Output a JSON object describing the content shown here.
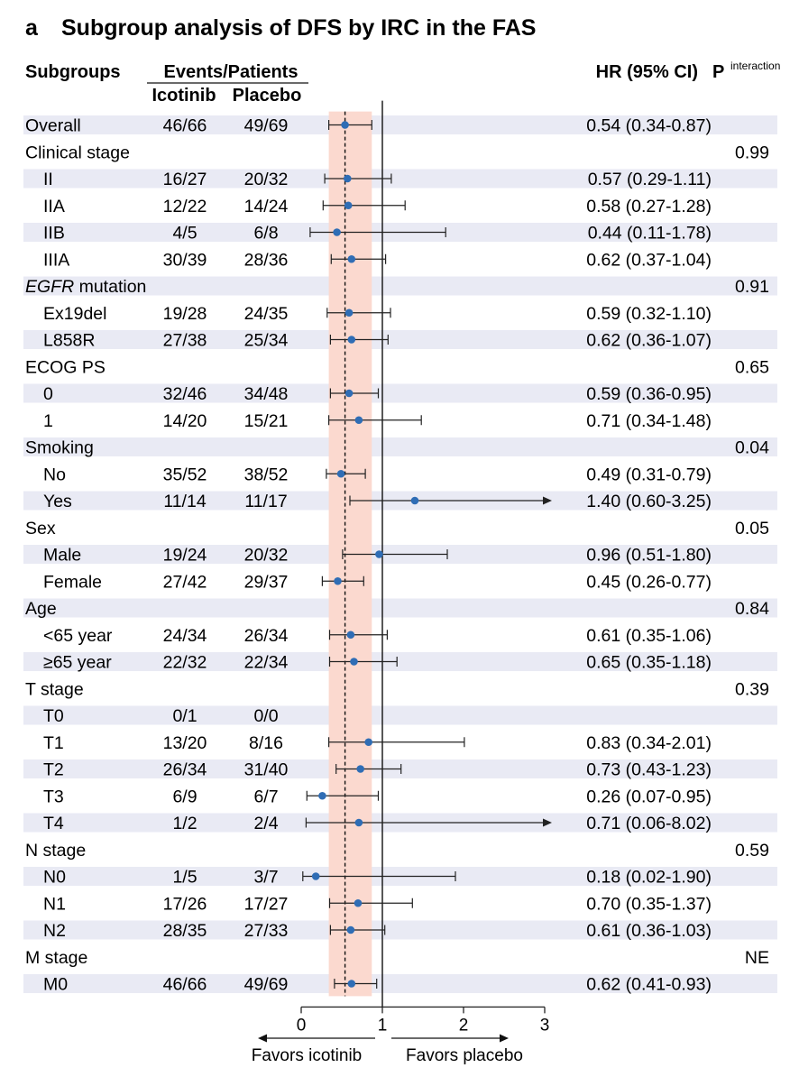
{
  "figure": {
    "panel_label": "a",
    "title": "Subgroup analysis of DFS by IRC in the FAS"
  },
  "headers": {
    "subgroups": "Subgroups",
    "events_patients": "Events/Patients",
    "icotinib": "Icotinib",
    "placebo": "Placebo",
    "hr": "HR (95% CI)",
    "p": "P",
    "p_sup": "interaction"
  },
  "favors": {
    "left": "Favors icotinib",
    "right": "Favors placebo"
  },
  "chart_data": {
    "type": "forest",
    "title": "Subgroup analysis of DFS by IRC in the FAS",
    "xlim": [
      0,
      3
    ],
    "xticks": [
      0,
      1,
      2,
      3
    ],
    "reference_line": 1,
    "overall_hr_line": 0.54,
    "overall_ci_band": [
      0.34,
      0.87
    ],
    "rows": [
      {
        "label": "Overall",
        "indent": false,
        "italic": "",
        "ico": "46/66",
        "pla": "49/69",
        "hr": 0.54,
        "lo": 0.34,
        "hi": 0.87,
        "arrow": false,
        "hrtext": "0.54 (0.34-0.87)",
        "p": "",
        "shaded": true
      },
      {
        "label": "Clinical stage",
        "indent": false,
        "italic": "",
        "ico": "",
        "pla": "",
        "hr": null,
        "lo": null,
        "hi": null,
        "arrow": false,
        "hrtext": "",
        "p": "0.99",
        "shaded": false
      },
      {
        "label": "II",
        "indent": true,
        "italic": "",
        "ico": "16/27",
        "pla": "20/32",
        "hr": 0.57,
        "lo": 0.29,
        "hi": 1.11,
        "arrow": false,
        "hrtext": "0.57 (0.29-1.11)",
        "p": "",
        "shaded": true
      },
      {
        "label": "IIA",
        "indent": true,
        "italic": "",
        "ico": "12/22",
        "pla": "14/24",
        "hr": 0.58,
        "lo": 0.27,
        "hi": 1.28,
        "arrow": false,
        "hrtext": "0.58 (0.27-1.28)",
        "p": "",
        "shaded": false
      },
      {
        "label": "IIB",
        "indent": true,
        "italic": "",
        "ico": "4/5",
        "pla": "6/8",
        "hr": 0.44,
        "lo": 0.11,
        "hi": 1.78,
        "arrow": false,
        "hrtext": "0.44 (0.11-1.78)",
        "p": "",
        "shaded": true
      },
      {
        "label": "IIIA",
        "indent": true,
        "italic": "",
        "ico": "30/39",
        "pla": "28/36",
        "hr": 0.62,
        "lo": 0.37,
        "hi": 1.04,
        "arrow": false,
        "hrtext": "0.62 (0.37-1.04)",
        "p": "",
        "shaded": false
      },
      {
        "label": " mutation",
        "indent": false,
        "italic": "EGFR",
        "ico": "",
        "pla": "",
        "hr": null,
        "lo": null,
        "hi": null,
        "arrow": false,
        "hrtext": "",
        "p": "0.91",
        "shaded": true
      },
      {
        "label": "Ex19del",
        "indent": true,
        "italic": "",
        "ico": "19/28",
        "pla": "24/35",
        "hr": 0.59,
        "lo": 0.32,
        "hi": 1.1,
        "arrow": false,
        "hrtext": "0.59 (0.32-1.10)",
        "p": "",
        "shaded": false
      },
      {
        "label": "L858R",
        "indent": true,
        "italic": "",
        "ico": "27/38",
        "pla": "25/34",
        "hr": 0.62,
        "lo": 0.36,
        "hi": 1.07,
        "arrow": false,
        "hrtext": "0.62 (0.36-1.07)",
        "p": "",
        "shaded": true
      },
      {
        "label": "ECOG PS",
        "indent": false,
        "italic": "",
        "ico": "",
        "pla": "",
        "hr": null,
        "lo": null,
        "hi": null,
        "arrow": false,
        "hrtext": "",
        "p": "0.65",
        "shaded": false
      },
      {
        "label": "0",
        "indent": true,
        "italic": "",
        "ico": "32/46",
        "pla": "34/48",
        "hr": 0.59,
        "lo": 0.36,
        "hi": 0.95,
        "arrow": false,
        "hrtext": "0.59 (0.36-0.95)",
        "p": "",
        "shaded": true
      },
      {
        "label": "1",
        "indent": true,
        "italic": "",
        "ico": "14/20",
        "pla": "15/21",
        "hr": 0.71,
        "lo": 0.34,
        "hi": 1.48,
        "arrow": false,
        "hrtext": "0.71 (0.34-1.48)",
        "p": "",
        "shaded": false
      },
      {
        "label": "Smoking",
        "indent": false,
        "italic": "",
        "ico": "",
        "pla": "",
        "hr": null,
        "lo": null,
        "hi": null,
        "arrow": false,
        "hrtext": "",
        "p": "0.04",
        "shaded": true
      },
      {
        "label": "No",
        "indent": true,
        "italic": "",
        "ico": "35/52",
        "pla": "38/52",
        "hr": 0.49,
        "lo": 0.31,
        "hi": 0.79,
        "arrow": false,
        "hrtext": "0.49 (0.31-0.79)",
        "p": "",
        "shaded": false
      },
      {
        "label": "Yes",
        "indent": true,
        "italic": "",
        "ico": "11/14",
        "pla": "11/17",
        "hr": 1.4,
        "lo": 0.6,
        "hi": 3.25,
        "arrow": true,
        "hrtext": "1.40 (0.60-3.25)",
        "p": "",
        "shaded": true
      },
      {
        "label": "Sex",
        "indent": false,
        "italic": "",
        "ico": "",
        "pla": "",
        "hr": null,
        "lo": null,
        "hi": null,
        "arrow": false,
        "hrtext": "",
        "p": "0.05",
        "shaded": false
      },
      {
        "label": "Male",
        "indent": true,
        "italic": "",
        "ico": "19/24",
        "pla": "20/32",
        "hr": 0.96,
        "lo": 0.51,
        "hi": 1.8,
        "arrow": false,
        "hrtext": "0.96 (0.51-1.80)",
        "p": "",
        "shaded": true
      },
      {
        "label": "Female",
        "indent": true,
        "italic": "",
        "ico": "27/42",
        "pla": "29/37",
        "hr": 0.45,
        "lo": 0.26,
        "hi": 0.77,
        "arrow": false,
        "hrtext": "0.45 (0.26-0.77)",
        "p": "",
        "shaded": false
      },
      {
        "label": "Age",
        "indent": false,
        "italic": "",
        "ico": "",
        "pla": "",
        "hr": null,
        "lo": null,
        "hi": null,
        "arrow": false,
        "hrtext": "",
        "p": "0.84",
        "shaded": true
      },
      {
        "label": "<65 year",
        "indent": true,
        "italic": "",
        "ico": "24/34",
        "pla": "26/34",
        "hr": 0.61,
        "lo": 0.35,
        "hi": 1.06,
        "arrow": false,
        "hrtext": "0.61 (0.35-1.06)",
        "p": "",
        "shaded": false
      },
      {
        "label": "≥65 year",
        "indent": true,
        "italic": "",
        "ico": "22/32",
        "pla": "22/34",
        "hr": 0.65,
        "lo": 0.35,
        "hi": 1.18,
        "arrow": false,
        "hrtext": "0.65 (0.35-1.18)",
        "p": "",
        "shaded": true
      },
      {
        "label": "T stage",
        "indent": false,
        "italic": "",
        "ico": "",
        "pla": "",
        "hr": null,
        "lo": null,
        "hi": null,
        "arrow": false,
        "hrtext": "",
        "p": "0.39",
        "shaded": false
      },
      {
        "label": "T0",
        "indent": true,
        "italic": "",
        "ico": "0/1",
        "pla": "0/0",
        "hr": null,
        "lo": null,
        "hi": null,
        "arrow": false,
        "hrtext": "",
        "p": "",
        "shaded": true
      },
      {
        "label": "T1",
        "indent": true,
        "italic": "",
        "ico": "13/20",
        "pla": "8/16",
        "hr": 0.83,
        "lo": 0.34,
        "hi": 2.01,
        "arrow": false,
        "hrtext": "0.83 (0.34-2.01)",
        "p": "",
        "shaded": false
      },
      {
        "label": "T2",
        "indent": true,
        "italic": "",
        "ico": "26/34",
        "pla": "31/40",
        "hr": 0.73,
        "lo": 0.43,
        "hi": 1.23,
        "arrow": false,
        "hrtext": "0.73 (0.43-1.23)",
        "p": "",
        "shaded": true
      },
      {
        "label": "T3",
        "indent": true,
        "italic": "",
        "ico": "6/9",
        "pla": "6/7",
        "hr": 0.26,
        "lo": 0.07,
        "hi": 0.95,
        "arrow": false,
        "hrtext": "0.26 (0.07-0.95)",
        "p": "",
        "shaded": false
      },
      {
        "label": "T4",
        "indent": true,
        "italic": "",
        "ico": "1/2",
        "pla": "2/4",
        "hr": 0.71,
        "lo": 0.06,
        "hi": 8.02,
        "arrow": true,
        "hrtext": "0.71 (0.06-8.02)",
        "p": "",
        "shaded": true
      },
      {
        "label": "N stage",
        "indent": false,
        "italic": "",
        "ico": "",
        "pla": "",
        "hr": null,
        "lo": null,
        "hi": null,
        "arrow": false,
        "hrtext": "",
        "p": "0.59",
        "shaded": false
      },
      {
        "label": "N0",
        "indent": true,
        "italic": "",
        "ico": "1/5",
        "pla": "3/7",
        "hr": 0.18,
        "lo": 0.02,
        "hi": 1.9,
        "arrow": false,
        "hrtext": "0.18 (0.02-1.90)",
        "p": "",
        "shaded": true
      },
      {
        "label": "N1",
        "indent": true,
        "italic": "",
        "ico": "17/26",
        "pla": "17/27",
        "hr": 0.7,
        "lo": 0.35,
        "hi": 1.37,
        "arrow": false,
        "hrtext": "0.70 (0.35-1.37)",
        "p": "",
        "shaded": false
      },
      {
        "label": "N2",
        "indent": true,
        "italic": "",
        "ico": "28/35",
        "pla": "27/33",
        "hr": 0.61,
        "lo": 0.36,
        "hi": 1.03,
        "arrow": false,
        "hrtext": "0.61 (0.36-1.03)",
        "p": "",
        "shaded": true
      },
      {
        "label": "M stage",
        "indent": false,
        "italic": "",
        "ico": "",
        "pla": "",
        "hr": null,
        "lo": null,
        "hi": null,
        "arrow": false,
        "hrtext": "",
        "p": "NE",
        "shaded": false
      },
      {
        "label": "M0",
        "indent": true,
        "italic": "",
        "ico": "46/66",
        "pla": "49/69",
        "hr": 0.62,
        "lo": 0.41,
        "hi": 0.93,
        "arrow": false,
        "hrtext": "0.62 (0.41-0.93)",
        "p": "",
        "shaded": true
      }
    ]
  },
  "colors": {
    "row_shade": "#e9eaf4",
    "ci_band": "#fbd9cf",
    "point": "#2f6db5",
    "line": "#222222"
  }
}
